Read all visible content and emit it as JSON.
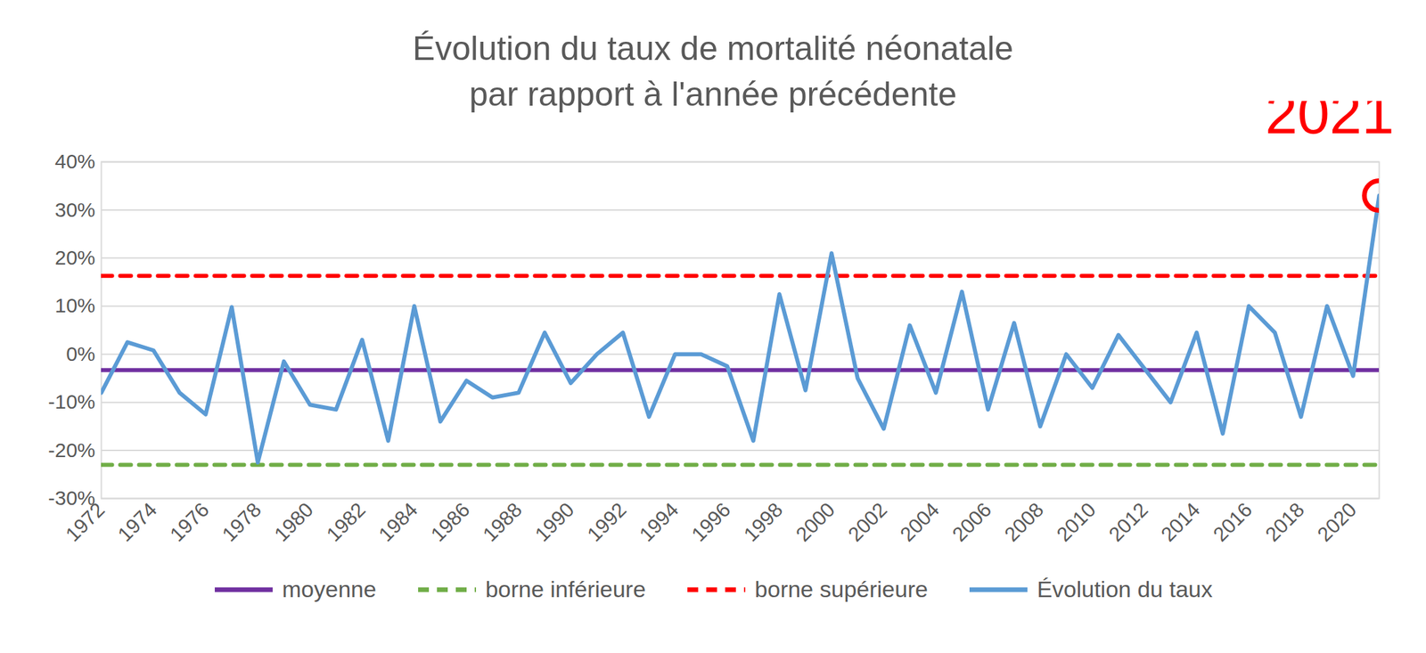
{
  "chart_data": {
    "type": "line",
    "title": "Évolution du taux de mortalité néonatale\npar rapport à l'année précédente",
    "x": [
      1972,
      1973,
      1974,
      1975,
      1976,
      1977,
      1978,
      1979,
      1980,
      1981,
      1982,
      1983,
      1984,
      1985,
      1986,
      1987,
      1988,
      1989,
      1990,
      1991,
      1992,
      1993,
      1994,
      1995,
      1996,
      1997,
      1998,
      1999,
      2000,
      2001,
      2002,
      2003,
      2004,
      2005,
      2006,
      2007,
      2008,
      2009,
      2010,
      2011,
      2012,
      2013,
      2014,
      2015,
      2016,
      2017,
      2018,
      2019,
      2020,
      2021
    ],
    "series": [
      {
        "name": "moyenne",
        "color": "#7030a0",
        "line_style": "solid",
        "values": [
          -3.3,
          -3.3,
          -3.3,
          -3.3,
          -3.3,
          -3.3,
          -3.3,
          -3.3,
          -3.3,
          -3.3,
          -3.3,
          -3.3,
          -3.3,
          -3.3,
          -3.3,
          -3.3,
          -3.3,
          -3.3,
          -3.3,
          -3.3,
          -3.3,
          -3.3,
          -3.3,
          -3.3,
          -3.3,
          -3.3,
          -3.3,
          -3.3,
          -3.3,
          -3.3,
          -3.3,
          -3.3,
          -3.3,
          -3.3,
          -3.3,
          -3.3,
          -3.3,
          -3.3,
          -3.3,
          -3.3,
          -3.3,
          -3.3,
          -3.3,
          -3.3,
          -3.3,
          -3.3,
          -3.3,
          -3.3,
          -3.3,
          -3.3
        ]
      },
      {
        "name": "borne inférieure",
        "color": "#70ad47",
        "line_style": "dashed",
        "values": [
          -23,
          -23,
          -23,
          -23,
          -23,
          -23,
          -23,
          -23,
          -23,
          -23,
          -23,
          -23,
          -23,
          -23,
          -23,
          -23,
          -23,
          -23,
          -23,
          -23,
          -23,
          -23,
          -23,
          -23,
          -23,
          -23,
          -23,
          -23,
          -23,
          -23,
          -23,
          -23,
          -23,
          -23,
          -23,
          -23,
          -23,
          -23,
          -23,
          -23,
          -23,
          -23,
          -23,
          -23,
          -23,
          -23,
          -23,
          -23,
          -23,
          -23
        ]
      },
      {
        "name": "borne supérieure",
        "color": "#ff0000",
        "line_style": "dashed",
        "values": [
          16.3,
          16.3,
          16.3,
          16.3,
          16.3,
          16.3,
          16.3,
          16.3,
          16.3,
          16.3,
          16.3,
          16.3,
          16.3,
          16.3,
          16.3,
          16.3,
          16.3,
          16.3,
          16.3,
          16.3,
          16.3,
          16.3,
          16.3,
          16.3,
          16.3,
          16.3,
          16.3,
          16.3,
          16.3,
          16.3,
          16.3,
          16.3,
          16.3,
          16.3,
          16.3,
          16.3,
          16.3,
          16.3,
          16.3,
          16.3,
          16.3,
          16.3,
          16.3,
          16.3,
          16.3,
          16.3,
          16.3,
          16.3,
          16.3,
          16.3
        ]
      },
      {
        "name": "Évolution du taux",
        "color": "#5b9bd5",
        "line_style": "solid",
        "values": [
          -8,
          2.5,
          0.8,
          -8,
          -12.5,
          9.8,
          -22.5,
          -1.5,
          -10.5,
          -11.5,
          3,
          -18,
          10,
          -14,
          -5.5,
          -9,
          -8,
          4.5,
          -6,
          0,
          4.5,
          -13,
          0,
          0,
          -2.5,
          -18,
          12.5,
          -7.5,
          21,
          -5,
          -15.5,
          6,
          -8,
          13,
          -11.5,
          6.5,
          -15,
          0,
          -7,
          4,
          -3,
          -10,
          4.5,
          -16.5,
          10,
          4.5,
          -13,
          10,
          -4.5,
          33
        ]
      }
    ],
    "xlim": [
      1972,
      2021
    ],
    "xticks": [
      1972,
      1974,
      1976,
      1978,
      1980,
      1982,
      1984,
      1986,
      1988,
      1990,
      1992,
      1994,
      1996,
      1998,
      2000,
      2002,
      2004,
      2006,
      2008,
      2010,
      2012,
      2014,
      2016,
      2018,
      2020
    ],
    "ylim": [
      -30,
      40
    ],
    "yticks": [
      {
        "value": -30,
        "label": "-30%"
      },
      {
        "value": -20,
        "label": "-20%"
      },
      {
        "value": -10,
        "label": "-10%"
      },
      {
        "value": 0,
        "label": "0%"
      },
      {
        "value": 10,
        "label": "10%"
      },
      {
        "value": 20,
        "label": "20%"
      },
      {
        "value": 30,
        "label": "30%"
      },
      {
        "value": 40,
        "label": "40%"
      }
    ],
    "grid": true,
    "legend": "bottom",
    "annotations": [
      {
        "text": "2021",
        "x": 2021,
        "y": 33,
        "color": "#ff0000",
        "marker": "circle"
      }
    ]
  }
}
